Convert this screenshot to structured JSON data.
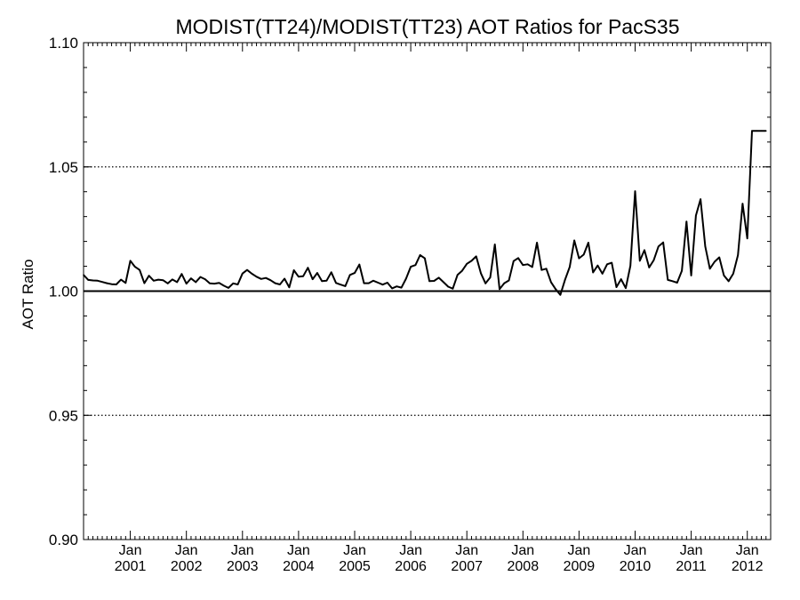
{
  "chart_data": {
    "type": "line",
    "title": "MODIST(TT24)/MODIST(TT23)  AOT Ratios for PacS35",
    "xlabel": "",
    "ylabel": "AOT Ratio",
    "ylim": [
      0.9,
      1.1
    ],
    "yticks": [
      "0.90",
      "0.95",
      "1.00",
      "1.05",
      "1.10"
    ],
    "xlim": [
      "2000-03",
      "2012-06"
    ],
    "xticks": [
      {
        "top": "Jan",
        "bottom": "2001",
        "date": "2001-01"
      },
      {
        "top": "Jan",
        "bottom": "2002",
        "date": "2002-01"
      },
      {
        "top": "Jan",
        "bottom": "2003",
        "date": "2003-01"
      },
      {
        "top": "Jan",
        "bottom": "2004",
        "date": "2004-01"
      },
      {
        "top": "Jan",
        "bottom": "2005",
        "date": "2005-01"
      },
      {
        "top": "Jan",
        "bottom": "2006",
        "date": "2006-01"
      },
      {
        "top": "Jan",
        "bottom": "2007",
        "date": "2007-01"
      },
      {
        "top": "Jan",
        "bottom": "2008",
        "date": "2008-01"
      },
      {
        "top": "Jan",
        "bottom": "2009",
        "date": "2009-01"
      },
      {
        "top": "Jan",
        "bottom": "2010",
        "date": "2010-01"
      },
      {
        "top": "Jan",
        "bottom": "2011",
        "date": "2011-01"
      },
      {
        "top": "Jan",
        "bottom": "2012",
        "date": "2012-01"
      }
    ],
    "reference_lines": [
      {
        "y": 1.0,
        "style": "solid"
      },
      {
        "y": 1.05,
        "style": "dotted"
      },
      {
        "y": 0.95,
        "style": "dotted"
      }
    ],
    "grid": false,
    "series": [
      {
        "x": [
          "2000-03",
          "2000-04",
          "2000-05",
          "2000-06",
          "2000-07",
          "2000-08",
          "2000-09",
          "2000-10",
          "2000-11",
          "2000-12",
          "2001-01",
          "2001-02",
          "2001-03",
          "2001-04",
          "2001-05",
          "2001-06",
          "2001-07",
          "2001-08",
          "2001-09",
          "2001-10",
          "2001-11",
          "2001-12",
          "2002-01",
          "2002-02",
          "2002-03",
          "2002-04",
          "2002-05",
          "2002-06",
          "2002-07",
          "2002-08",
          "2002-09",
          "2002-10",
          "2002-11",
          "2002-12",
          "2003-01",
          "2003-02",
          "2003-03",
          "2003-04",
          "2003-05",
          "2003-06",
          "2003-07",
          "2003-08",
          "2003-09",
          "2003-10",
          "2003-11",
          "2003-12",
          "2004-01",
          "2004-02",
          "2004-03",
          "2004-04",
          "2004-05",
          "2004-06",
          "2004-07",
          "2004-08",
          "2004-09",
          "2004-10",
          "2004-11",
          "2004-12",
          "2005-01",
          "2005-02",
          "2005-03",
          "2005-04",
          "2005-05",
          "2005-06",
          "2005-07",
          "2005-08",
          "2005-09",
          "2005-10",
          "2005-11",
          "2005-12",
          "2006-01",
          "2006-02",
          "2006-03",
          "2006-04",
          "2006-05",
          "2006-06",
          "2006-07",
          "2006-08",
          "2006-09",
          "2006-10",
          "2006-11",
          "2006-12",
          "2007-01",
          "2007-02",
          "2007-03",
          "2007-04",
          "2007-05",
          "2007-06",
          "2007-07",
          "2007-08",
          "2007-09",
          "2007-10",
          "2007-11",
          "2007-12",
          "2008-01",
          "2008-02",
          "2008-03",
          "2008-04",
          "2008-05",
          "2008-06",
          "2008-07",
          "2008-08",
          "2008-09",
          "2008-10",
          "2008-11",
          "2008-12",
          "2009-01",
          "2009-02",
          "2009-03",
          "2009-04",
          "2009-05",
          "2009-06",
          "2009-07",
          "2009-08",
          "2009-09",
          "2009-10",
          "2009-11",
          "2009-12",
          "2010-01",
          "2010-02",
          "2010-03",
          "2010-04",
          "2010-05",
          "2010-06",
          "2010-07",
          "2010-08",
          "2010-09",
          "2010-10",
          "2010-11",
          "2010-12",
          "2011-01",
          "2011-02",
          "2011-03",
          "2011-04",
          "2011-05",
          "2011-06",
          "2011-07",
          "2011-08",
          "2011-09",
          "2011-10",
          "2011-11",
          "2011-12",
          "2012-01",
          "2012-02",
          "2012-03",
          "2012-04",
          "2012-05"
        ],
        "y": [
          1.0065,
          1.0045,
          1.0043,
          1.0042,
          1.0037,
          1.0032,
          1.0028,
          1.0027,
          1.0046,
          1.0033,
          1.0122,
          1.0098,
          1.0085,
          1.0032,
          1.0062,
          1.0042,
          1.0046,
          1.0044,
          1.0031,
          1.0047,
          1.0036,
          1.0069,
          1.003,
          1.0051,
          1.0036,
          1.0057,
          1.0048,
          1.0031,
          1.003,
          1.0033,
          1.0022,
          1.0013,
          1.0031,
          1.0027,
          1.0071,
          1.0085,
          1.007,
          1.0058,
          1.0049,
          1.0053,
          1.0044,
          1.0032,
          1.0027,
          1.005,
          1.0015,
          1.0084,
          1.0058,
          1.006,
          1.0094,
          1.0048,
          1.0073,
          1.004,
          1.0042,
          1.0076,
          1.0033,
          1.0026,
          1.002,
          1.0065,
          1.0073,
          1.0107,
          1.0032,
          1.0032,
          1.0042,
          1.0034,
          1.0026,
          1.0034,
          1.0011,
          1.0019,
          1.0014,
          1.005,
          1.0098,
          1.0105,
          1.0145,
          1.0132,
          1.004,
          1.0041,
          1.0054,
          1.0036,
          1.0018,
          1.001,
          1.0065,
          1.0082,
          1.011,
          1.0122,
          1.014,
          1.0072,
          1.0031,
          1.0055,
          1.0188,
          1.0008,
          1.0032,
          1.0043,
          1.0121,
          1.0133,
          1.0105,
          1.0108,
          1.0097,
          1.0195,
          1.0085,
          1.009,
          1.0036,
          1.0008,
          0.9985,
          1.0045,
          1.0097,
          1.0204,
          1.0132,
          1.0147,
          1.0195,
          1.0075,
          1.0103,
          1.007,
          1.0108,
          1.0114,
          1.0016,
          1.0048,
          1.0012,
          1.0102,
          1.0402,
          1.0122,
          1.0165,
          1.0095,
          1.0125,
          1.018,
          1.0196,
          1.0045,
          1.004,
          1.0034,
          1.0082,
          1.028,
          1.0063,
          1.0304,
          1.037,
          1.018,
          1.009,
          1.0118,
          1.0136,
          1.0063,
          1.004,
          1.007,
          1.0145,
          1.0352,
          1.0212,
          1.0645,
          1.0645,
          1.0645,
          1.0645
        ]
      }
    ]
  }
}
